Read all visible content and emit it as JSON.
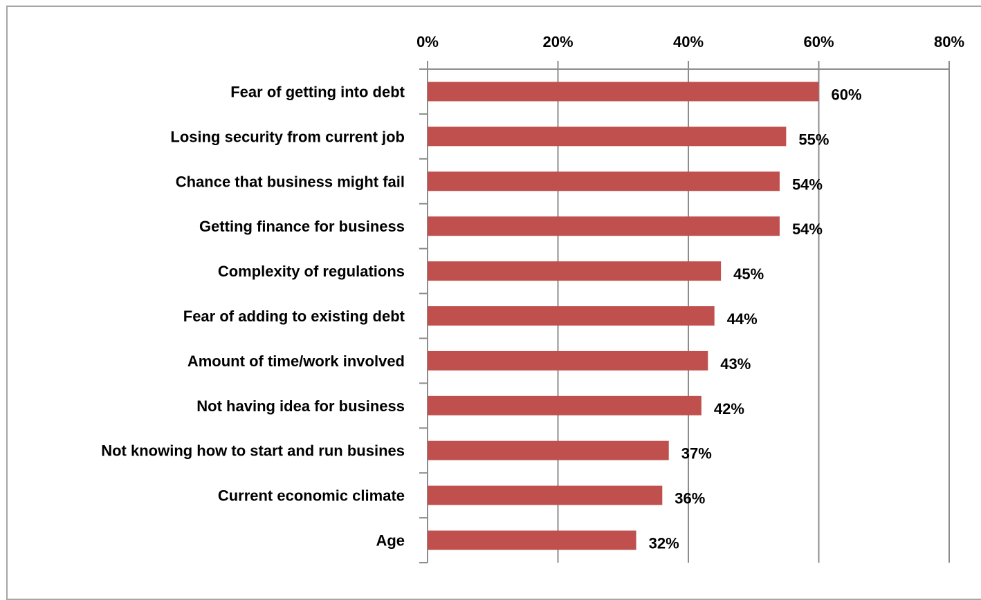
{
  "chart_data": {
    "type": "bar",
    "orientation": "horizontal",
    "categories": [
      "Fear of getting into debt",
      "Losing security from current job",
      "Chance that business  might fail",
      "Getting finance  for business",
      "Complexity of regulations",
      "Fear of adding to existing debt",
      "Amount of time/work involved",
      "Not having idea for business",
      "Not knowing how to start and run busines",
      "Current economic climate",
      "Age"
    ],
    "values": [
      60,
      55,
      54,
      54,
      45,
      44,
      43,
      42,
      37,
      36,
      32
    ],
    "data_labels": [
      "60%",
      "55%",
      "54%",
      "54%",
      "45%",
      "44%",
      "43%",
      "42%",
      "37%",
      "36%",
      "32%"
    ],
    "x_ticks": [
      0,
      20,
      40,
      60,
      80
    ],
    "x_tick_labels": [
      "0%",
      "20%",
      "40%",
      "60%",
      "80%"
    ],
    "xlim": [
      0,
      80
    ],
    "x_axis_position": "top",
    "grid": true,
    "legend": "none",
    "title": "",
    "xlabel": "",
    "ylabel": "",
    "colors": {
      "bar": "#c0504d",
      "grid": "#8c8c8c",
      "axis": "#8c8c8c",
      "frame": "#a6a6a6",
      "text": "#000000"
    }
  }
}
